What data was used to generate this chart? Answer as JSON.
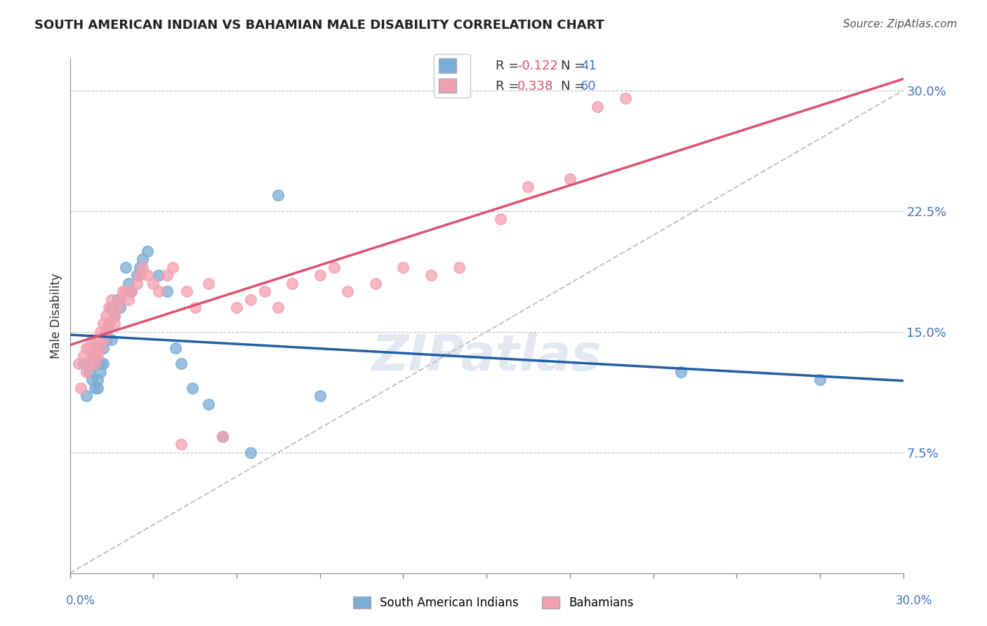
{
  "title": "SOUTH AMERICAN INDIAN VS BAHAMIAN MALE DISABILITY CORRELATION CHART",
  "source": "Source: ZipAtlas.com",
  "ylabel": "Male Disability",
  "ytick_labels": [
    "7.5%",
    "15.0%",
    "22.5%",
    "30.0%"
  ],
  "ytick_values": [
    0.075,
    0.15,
    0.225,
    0.3
  ],
  "xmin": 0.0,
  "xmax": 0.3,
  "ymin": 0.0,
  "ymax": 0.32,
  "r_blue": -0.122,
  "n_blue": 41,
  "r_pink": 0.338,
  "n_pink": 60,
  "legend_label_blue": "South American Indians",
  "legend_label_pink": "Bahamians",
  "watermark": "ZIPatlas",
  "blue_color": "#7aacd6",
  "pink_color": "#f4a0b0",
  "blue_line_color": "#1f5fa6",
  "pink_line_color": "#e05070",
  "diag_line_color": "#c8b8b8",
  "blue_scatter_x": [
    0.005,
    0.006,
    0.007,
    0.008,
    0.008,
    0.009,
    0.009,
    0.01,
    0.01,
    0.01,
    0.011,
    0.011,
    0.012,
    0.012,
    0.013,
    0.013,
    0.014,
    0.015,
    0.015,
    0.016,
    0.017,
    0.018,
    0.02,
    0.021,
    0.022,
    0.024,
    0.025,
    0.026,
    0.028,
    0.032,
    0.035,
    0.038,
    0.04,
    0.044,
    0.05,
    0.055,
    0.065,
    0.075,
    0.09,
    0.22,
    0.27
  ],
  "blue_scatter_y": [
    0.13,
    0.11,
    0.125,
    0.13,
    0.12,
    0.135,
    0.115,
    0.14,
    0.12,
    0.115,
    0.13,
    0.125,
    0.14,
    0.13,
    0.145,
    0.15,
    0.155,
    0.165,
    0.145,
    0.16,
    0.17,
    0.165,
    0.19,
    0.18,
    0.175,
    0.185,
    0.19,
    0.195,
    0.2,
    0.185,
    0.175,
    0.14,
    0.13,
    0.115,
    0.105,
    0.085,
    0.075,
    0.235,
    0.11,
    0.125,
    0.12
  ],
  "pink_scatter_x": [
    0.003,
    0.004,
    0.005,
    0.006,
    0.006,
    0.007,
    0.007,
    0.008,
    0.008,
    0.009,
    0.009,
    0.01,
    0.01,
    0.011,
    0.011,
    0.012,
    0.012,
    0.013,
    0.013,
    0.014,
    0.014,
    0.015,
    0.016,
    0.016,
    0.017,
    0.018,
    0.019,
    0.02,
    0.021,
    0.022,
    0.024,
    0.025,
    0.026,
    0.028,
    0.03,
    0.032,
    0.035,
    0.037,
    0.04,
    0.042,
    0.045,
    0.05,
    0.055,
    0.06,
    0.065,
    0.07,
    0.075,
    0.08,
    0.09,
    0.095,
    0.1,
    0.11,
    0.12,
    0.13,
    0.14,
    0.155,
    0.165,
    0.18,
    0.19,
    0.2
  ],
  "pink_scatter_y": [
    0.13,
    0.115,
    0.135,
    0.14,
    0.125,
    0.14,
    0.13,
    0.145,
    0.135,
    0.14,
    0.13,
    0.145,
    0.135,
    0.15,
    0.14,
    0.155,
    0.145,
    0.16,
    0.15,
    0.165,
    0.155,
    0.17,
    0.16,
    0.155,
    0.165,
    0.17,
    0.175,
    0.175,
    0.17,
    0.175,
    0.18,
    0.185,
    0.19,
    0.185,
    0.18,
    0.175,
    0.185,
    0.19,
    0.08,
    0.175,
    0.165,
    0.18,
    0.085,
    0.165,
    0.17,
    0.175,
    0.165,
    0.18,
    0.185,
    0.19,
    0.175,
    0.18,
    0.19,
    0.185,
    0.19,
    0.22,
    0.24,
    0.245,
    0.29,
    0.295
  ]
}
